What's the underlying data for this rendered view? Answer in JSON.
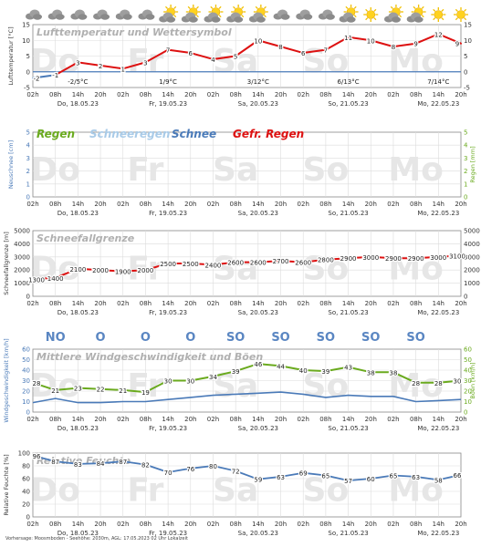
{
  "weather_icons": [
    "cloud-icon",
    "cloud-icon",
    "cloud-icon",
    "cloud-icon",
    "cloud-icon",
    "cloud-icon",
    "sun-cloud-icon",
    "sun-cloud-icon",
    "sun-cloud-icon",
    "sun-cloud-icon",
    "sun-cloud-icon",
    "cloud-icon",
    "cloud-icon",
    "cloud-icon",
    "sun-cloud-icon",
    "sun-icon",
    "sun-cloud-icon",
    "sun-cloud-icon",
    "sun-icon",
    "sun-icon"
  ],
  "time_labels": [
    "02h",
    "08h",
    "14h",
    "20h",
    "02h",
    "08h",
    "14h",
    "20h",
    "02h",
    "08h",
    "14h",
    "20h",
    "02h",
    "08h",
    "14h",
    "20h",
    "02h",
    "08h",
    "14h",
    "20h"
  ],
  "date_labels": [
    "Do, 18.05.23",
    "Fr, 19.05.23",
    "Sa, 20.05.23",
    "So, 21.05.23",
    "Mo, 22.05.23"
  ],
  "day_watermarks": [
    "Do",
    "Fr",
    "Sa",
    "So",
    "Mo"
  ],
  "colors": {
    "red": "#dd1111",
    "blue": "#4a7ab8",
    "green": "#6aaa1e",
    "lightblue": "#a9cbe8",
    "grey": "#bbbbbb",
    "grid": "#dcdcdc"
  },
  "panels": {
    "temp": {
      "title": "Lufttemperatur und Wettersymbol",
      "ylabel": "Lufttemperatur [°C]",
      "yticks": [
        "15",
        "10",
        "5",
        "0",
        "-5"
      ],
      "minmax": [
        "-2/5°C",
        "1/9°C",
        "3/12°C",
        "6/13°C",
        "7/14°C"
      ]
    },
    "precip": {
      "legend": [
        "Regen",
        "Schneeregen",
        "Schnee",
        "Gefr. Regen"
      ],
      "ylabel_left": "Neuschnee [cm]",
      "ylabel_right": "Regen [mm]",
      "yticks": [
        "5",
        "4",
        "3",
        "2",
        "1",
        "0"
      ]
    },
    "snowline": {
      "title": "Schneefallgrenze",
      "ylabel": "Schneefallgrenze [m]",
      "yticks": [
        "5000",
        "4000",
        "3000",
        "2000",
        "1000",
        "0"
      ]
    },
    "wind": {
      "title": "Mittlere Windgeschwindigkeit und Böen",
      "ylabel_left": "Windgeschwindigkeit [km/h]",
      "ylabel_right": "Böen [km/h]",
      "yticks": [
        "60",
        "50",
        "40",
        "30",
        "20",
        "10",
        "0"
      ],
      "directions": [
        "NO",
        "O",
        "O",
        "O",
        "SO",
        "SO",
        "SO",
        "SO",
        "SO"
      ]
    },
    "humidity": {
      "title": "Relative Feuchte",
      "ylabel": "Relative Feuchte [%]",
      "yticks": [
        "100",
        "80",
        "60",
        "40",
        "20",
        "0"
      ]
    }
  },
  "footer": "Vorhersage: Moosmboden - Seehöhe: 2030m, AGL: 17.05.2023 02 Uhr Lokalzeit",
  "chart_data": [
    {
      "type": "line",
      "title": "Lufttemperatur und Wettersymbol",
      "ylabel": "Lufttemperatur [°C]",
      "ylim": [
        -5,
        15
      ],
      "x": [
        "02h",
        "08h",
        "14h",
        "20h",
        "02h",
        "08h",
        "14h",
        "20h",
        "02h",
        "08h",
        "14h",
        "20h",
        "02h",
        "08h",
        "14h",
        "20h",
        "02h",
        "08h",
        "14h",
        "20h"
      ],
      "values": [
        -2,
        -1,
        3,
        2,
        1,
        3,
        7,
        6,
        4,
        5,
        10,
        8,
        6,
        7,
        11,
        10,
        8,
        9,
        12,
        9
      ]
    },
    {
      "type": "line",
      "title": "Schneefallgrenze",
      "ylabel": "Schneefallgrenze [m]",
      "ylim": [
        0,
        5000
      ],
      "values": [
        1300,
        1400,
        2100,
        2000,
        1900,
        2000,
        2500,
        2500,
        2400,
        2600,
        2600,
        2700,
        2600,
        2800,
        2900,
        3000,
        2900,
        2900,
        3000,
        3100
      ]
    },
    {
      "type": "line",
      "title": "Mittlere Windgeschwindigkeit und Böen",
      "ylim": [
        0,
        60
      ],
      "series": [
        {
          "name": "Böen",
          "values": [
            28,
            21,
            23,
            22,
            21,
            19,
            30,
            30,
            34,
            39,
            46,
            44,
            40,
            39,
            43,
            38,
            38,
            28,
            28,
            30
          ]
        },
        {
          "name": "Wind",
          "values": [
            9,
            13,
            9,
            9,
            10,
            10,
            12,
            14,
            16,
            17,
            18,
            19,
            17,
            14,
            16,
            15,
            15,
            10,
            11,
            12
          ]
        }
      ]
    },
    {
      "type": "line",
      "title": "Relative Feuchte",
      "ylabel": "Relative Feuchte [%]",
      "ylim": [
        0,
        100
      ],
      "values": [
        96,
        87,
        83,
        84,
        87,
        82,
        70,
        76,
        80,
        72,
        59,
        63,
        69,
        65,
        57,
        60,
        65,
        63,
        58,
        66
      ]
    }
  ]
}
